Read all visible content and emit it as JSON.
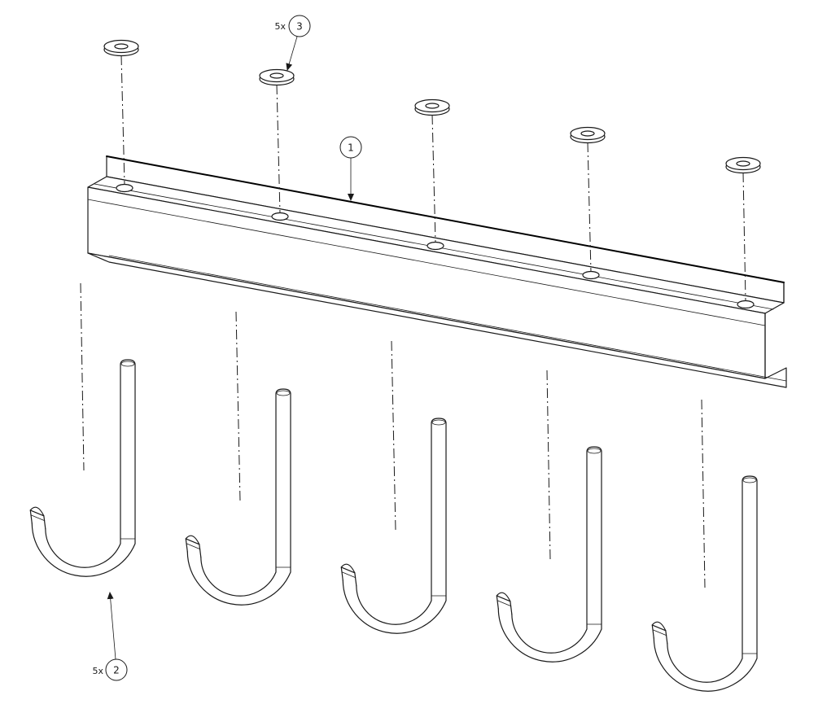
{
  "diagram": {
    "balloons": [
      {
        "id": "balloon-1",
        "number": "1",
        "quantity": ""
      },
      {
        "id": "balloon-2",
        "number": "2",
        "quantity": "5x"
      },
      {
        "id": "balloon-3",
        "number": "3",
        "quantity": "5x"
      }
    ],
    "parts": {
      "channel_rail": {
        "count": 1
      },
      "j_bolt_hooks": {
        "count": 5
      },
      "washers": {
        "count": 5
      }
    },
    "colors": {
      "line": "#1a1a1a",
      "background": "#ffffff"
    }
  }
}
